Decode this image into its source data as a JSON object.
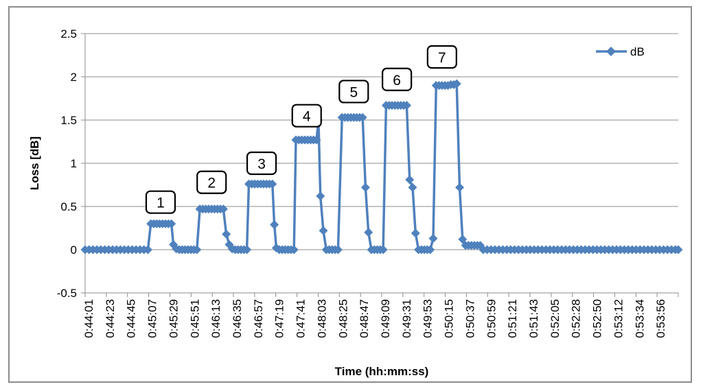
{
  "chart_data": {
    "type": "line",
    "xlabel": "Time (hh:mm:ss)",
    "ylabel": "Loss [dB]",
    "ylim": [
      -0.5,
      2.5
    ],
    "yticks": [
      -0.5,
      0,
      0.5,
      1,
      1.5,
      2,
      2.5
    ],
    "ytick_labels": [
      "-0.5",
      "0",
      "0.5",
      "1",
      "1.5",
      "2",
      "2.5"
    ],
    "xlim": [
      "0:44:01",
      "0:54:06"
    ],
    "xtick_labels": [
      "0:44:01",
      "0:44:23",
      "0:44:45",
      "0:45:07",
      "0:45:29",
      "0:45:51",
      "0:46:13",
      "0:46:35",
      "0:46:57",
      "0:47:19",
      "0:47:41",
      "0:48:03",
      "0:48:25",
      "0:48:47",
      "0:49:09",
      "0:49:31",
      "0:49:53",
      "0:50:15",
      "0:50:37",
      "0:50:59",
      "0:51:21",
      "0:51:43",
      "0:52:05",
      "0:52:28",
      "0:52:50",
      "0:53:12",
      "0:53:34",
      "0:53:56"
    ],
    "grid": "horizontal",
    "legend_position": "top-right",
    "series": [
      {
        "name": "dB",
        "color": "#4F81BD",
        "marker": "diamond",
        "points": [
          [
            "0:44:01",
            0
          ],
          [
            "0:44:05",
            0
          ],
          [
            "0:44:09",
            0
          ],
          [
            "0:44:13",
            0
          ],
          [
            "0:44:17",
            0
          ],
          [
            "0:44:21",
            0
          ],
          [
            "0:44:25",
            0
          ],
          [
            "0:44:29",
            0
          ],
          [
            "0:44:33",
            0
          ],
          [
            "0:44:37",
            0
          ],
          [
            "0:44:41",
            0
          ],
          [
            "0:44:45",
            0
          ],
          [
            "0:44:49",
            0
          ],
          [
            "0:44:53",
            0
          ],
          [
            "0:44:57",
            0
          ],
          [
            "0:45:01",
            0
          ],
          [
            "0:45:05",
            0
          ],
          [
            "0:45:08",
            0.3
          ],
          [
            "0:45:11",
            0.3
          ],
          [
            "0:45:14",
            0.3
          ],
          [
            "0:45:17",
            0.3
          ],
          [
            "0:45:20",
            0.3
          ],
          [
            "0:45:23",
            0.3
          ],
          [
            "0:45:26",
            0.3
          ],
          [
            "0:45:29",
            0.3
          ],
          [
            "0:45:31",
            0.06
          ],
          [
            "0:45:34",
            0.01
          ],
          [
            "0:45:37",
            0
          ],
          [
            "0:45:40",
            0
          ],
          [
            "0:45:43",
            0
          ],
          [
            "0:45:46",
            0
          ],
          [
            "0:45:49",
            0
          ],
          [
            "0:45:52",
            0
          ],
          [
            "0:45:55",
            0
          ],
          [
            "0:45:58",
            0.47
          ],
          [
            "0:46:01",
            0.47
          ],
          [
            "0:46:04",
            0.47
          ],
          [
            "0:46:07",
            0.47
          ],
          [
            "0:46:10",
            0.47
          ],
          [
            "0:46:13",
            0.47
          ],
          [
            "0:46:16",
            0.47
          ],
          [
            "0:46:19",
            0.47
          ],
          [
            "0:46:22",
            0.47
          ],
          [
            "0:46:25",
            0.18
          ],
          [
            "0:46:28",
            0.06
          ],
          [
            "0:46:31",
            0.01
          ],
          [
            "0:46:34",
            0
          ],
          [
            "0:46:37",
            0
          ],
          [
            "0:46:40",
            0
          ],
          [
            "0:46:43",
            0
          ],
          [
            "0:46:46",
            0
          ],
          [
            "0:46:48",
            0.76
          ],
          [
            "0:46:51",
            0.76
          ],
          [
            "0:46:54",
            0.76
          ],
          [
            "0:46:57",
            0.76
          ],
          [
            "0:47:00",
            0.76
          ],
          [
            "0:47:03",
            0.76
          ],
          [
            "0:47:06",
            0.76
          ],
          [
            "0:47:09",
            0.76
          ],
          [
            "0:47:12",
            0.76
          ],
          [
            "0:47:14",
            0.29
          ],
          [
            "0:47:16",
            0.02
          ],
          [
            "0:47:19",
            0
          ],
          [
            "0:47:22",
            0
          ],
          [
            "0:47:25",
            0
          ],
          [
            "0:47:28",
            0
          ],
          [
            "0:47:31",
            0
          ],
          [
            "0:47:34",
            0
          ],
          [
            "0:47:36",
            1.27
          ],
          [
            "0:47:39",
            1.27
          ],
          [
            "0:47:42",
            1.27
          ],
          [
            "0:47:45",
            1.27
          ],
          [
            "0:47:48",
            1.27
          ],
          [
            "0:47:51",
            1.27
          ],
          [
            "0:47:54",
            1.27
          ],
          [
            "0:47:57",
            1.27
          ],
          [
            "0:47:59",
            1.5
          ],
          [
            "0:48:01",
            0.62
          ],
          [
            "0:48:04",
            0.22
          ],
          [
            "0:48:07",
            0
          ],
          [
            "0:48:10",
            0
          ],
          [
            "0:48:13",
            0
          ],
          [
            "0:48:16",
            0
          ],
          [
            "0:48:19",
            0
          ],
          [
            "0:48:23",
            1.53
          ],
          [
            "0:48:26",
            1.53
          ],
          [
            "0:48:29",
            1.53
          ],
          [
            "0:48:32",
            1.53
          ],
          [
            "0:48:35",
            1.53
          ],
          [
            "0:48:38",
            1.53
          ],
          [
            "0:48:41",
            1.53
          ],
          [
            "0:48:44",
            1.53
          ],
          [
            "0:48:47",
            0.72
          ],
          [
            "0:48:50",
            0.2
          ],
          [
            "0:48:53",
            0
          ],
          [
            "0:48:56",
            0
          ],
          [
            "0:48:59",
            0
          ],
          [
            "0:49:02",
            0
          ],
          [
            "0:49:05",
            0
          ],
          [
            "0:49:08",
            1.67
          ],
          [
            "0:49:11",
            1.67
          ],
          [
            "0:49:14",
            1.67
          ],
          [
            "0:49:17",
            1.67
          ],
          [
            "0:49:20",
            1.67
          ],
          [
            "0:49:23",
            1.67
          ],
          [
            "0:49:26",
            1.67
          ],
          [
            "0:49:29",
            1.67
          ],
          [
            "0:49:32",
            0.81
          ],
          [
            "0:49:35",
            0.72
          ],
          [
            "0:49:38",
            0.19
          ],
          [
            "0:49:41",
            0
          ],
          [
            "0:49:44",
            0
          ],
          [
            "0:49:47",
            0
          ],
          [
            "0:49:50",
            0
          ],
          [
            "0:49:53",
            0
          ],
          [
            "0:49:56",
            0.13
          ],
          [
            "0:49:59",
            1.9
          ],
          [
            "0:50:02",
            1.9
          ],
          [
            "0:50:05",
            1.9
          ],
          [
            "0:50:08",
            1.9
          ],
          [
            "0:50:11",
            1.9
          ],
          [
            "0:50:14",
            1.91
          ],
          [
            "0:50:17",
            1.91
          ],
          [
            "0:50:20",
            1.92
          ],
          [
            "0:50:23",
            0.72
          ],
          [
            "0:50:26",
            0.12
          ],
          [
            "0:50:29",
            0.05
          ],
          [
            "0:50:32",
            0.05
          ],
          [
            "0:50:35",
            0.05
          ],
          [
            "0:50:38",
            0.05
          ],
          [
            "0:50:41",
            0.05
          ],
          [
            "0:50:44",
            0.05
          ],
          [
            "0:50:47",
            0
          ],
          [
            "0:50:51",
            0
          ],
          [
            "0:50:55",
            0
          ],
          [
            "0:50:59",
            0
          ],
          [
            "0:51:03",
            0
          ],
          [
            "0:51:07",
            0
          ],
          [
            "0:51:11",
            0
          ],
          [
            "0:51:15",
            0
          ],
          [
            "0:51:19",
            0
          ],
          [
            "0:51:23",
            0
          ],
          [
            "0:51:27",
            0
          ],
          [
            "0:51:31",
            0
          ],
          [
            "0:51:35",
            0
          ],
          [
            "0:51:39",
            0
          ],
          [
            "0:51:43",
            0
          ],
          [
            "0:51:47",
            0
          ],
          [
            "0:51:51",
            0
          ],
          [
            "0:51:55",
            0
          ],
          [
            "0:51:59",
            0
          ],
          [
            "0:52:03",
            0
          ],
          [
            "0:52:07",
            0
          ],
          [
            "0:52:11",
            0
          ],
          [
            "0:52:15",
            0
          ],
          [
            "0:52:19",
            0
          ],
          [
            "0:52:23",
            0
          ],
          [
            "0:52:27",
            0
          ],
          [
            "0:52:31",
            0
          ],
          [
            "0:52:35",
            0
          ],
          [
            "0:52:39",
            0
          ],
          [
            "0:52:43",
            0
          ],
          [
            "0:52:47",
            0
          ],
          [
            "0:52:51",
            0
          ],
          [
            "0:52:55",
            0
          ],
          [
            "0:52:59",
            0
          ],
          [
            "0:53:03",
            0
          ],
          [
            "0:53:07",
            0
          ],
          [
            "0:53:11",
            0
          ],
          [
            "0:53:15",
            0
          ],
          [
            "0:53:19",
            0
          ],
          [
            "0:53:23",
            0
          ],
          [
            "0:53:27",
            0
          ],
          [
            "0:53:31",
            0
          ],
          [
            "0:53:35",
            0
          ],
          [
            "0:53:39",
            0
          ],
          [
            "0:53:43",
            0
          ],
          [
            "0:53:47",
            0
          ],
          [
            "0:53:51",
            0
          ],
          [
            "0:53:55",
            0
          ],
          [
            "0:53:59",
            0
          ],
          [
            "0:54:03",
            0
          ],
          [
            "0:54:06",
            0
          ]
        ]
      }
    ],
    "annotations": [
      {
        "label": "1",
        "x": "0:45:18",
        "y": 0.55
      },
      {
        "label": "2",
        "x": "0:46:10",
        "y": 0.78
      },
      {
        "label": "3",
        "x": "0:47:01",
        "y": 1.0
      },
      {
        "label": "4",
        "x": "0:47:47",
        "y": 1.55
      },
      {
        "label": "5",
        "x": "0:48:35",
        "y": 1.83
      },
      {
        "label": "6",
        "x": "0:49:19",
        "y": 1.97
      },
      {
        "label": "7",
        "x": "0:50:05",
        "y": 2.23
      }
    ]
  }
}
